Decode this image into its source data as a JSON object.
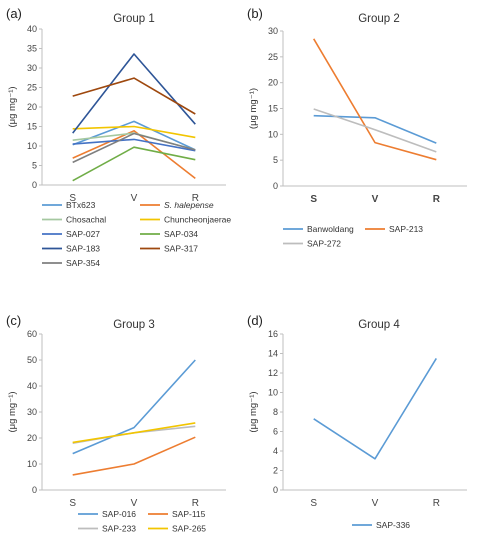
{
  "chart_data": [
    {
      "type": "line",
      "panel_label": "(a)",
      "title": "Group 1",
      "ylabel": "(μg mg⁻¹)",
      "categories": [
        "S",
        "V",
        "R"
      ],
      "ylim": [
        0,
        40
      ],
      "yticks": [
        0,
        5,
        10,
        15,
        20,
        25,
        30,
        35,
        40
      ],
      "series": [
        {
          "name": "BTx623",
          "color": "#5b9bd5",
          "values": [
            10.3,
            16.3,
            9.0
          ]
        },
        {
          "name": "S. halepense",
          "color": "#ed7d31",
          "italic": true,
          "values": [
            6.9,
            13.9,
            1.7
          ]
        },
        {
          "name": "Chosachal",
          "color": "#a5c8a0",
          "values": [
            11.5,
            13.3,
            9.0
          ]
        },
        {
          "name": "Chuncheonjaerae",
          "color": "#f2c500",
          "values": [
            14.4,
            15.0,
            12.2
          ]
        },
        {
          "name": "SAP-027",
          "color": "#4472c4",
          "values": [
            10.5,
            11.7,
            8.8
          ]
        },
        {
          "name": "SAP-034",
          "color": "#70ad47",
          "values": [
            1.1,
            9.7,
            6.5
          ]
        },
        {
          "name": "SAP-183",
          "color": "#2e5597",
          "values": [
            13.3,
            33.6,
            15.6
          ]
        },
        {
          "name": "SAP-317",
          "color": "#9e480e",
          "values": [
            22.8,
            27.4,
            18.2
          ]
        },
        {
          "name": "SAP-354",
          "color": "#7f7f7f",
          "values": [
            5.8,
            13.2,
            9.0
          ]
        }
      ]
    },
    {
      "type": "line",
      "panel_label": "(b)",
      "title": "Group 2",
      "ylabel": "(μg mg⁻¹)",
      "categories": [
        "S",
        "V",
        "R"
      ],
      "categories_bold": true,
      "ylim": [
        0,
        30
      ],
      "yticks": [
        0,
        5,
        10,
        15,
        20,
        25,
        30
      ],
      "series": [
        {
          "name": "Banwoldang",
          "color": "#5b9bd5",
          "values": [
            13.6,
            13.2,
            8.3
          ]
        },
        {
          "name": "SAP-213",
          "color": "#ed7d31",
          "values": [
            28.5,
            8.4,
            5.1
          ]
        },
        {
          "name": "SAP-272",
          "color": "#bdbdbd",
          "values": [
            14.9,
            10.9,
            6.6
          ]
        }
      ]
    },
    {
      "type": "line",
      "panel_label": "(c)",
      "title": "Group 3",
      "ylabel": "(μg mg⁻¹)",
      "categories": [
        "S",
        "V",
        "R"
      ],
      "ylim": [
        0,
        60
      ],
      "yticks": [
        0,
        10,
        20,
        30,
        40,
        50,
        60
      ],
      "series": [
        {
          "name": "SAP-016",
          "color": "#5b9bd5",
          "values": [
            14.0,
            24.0,
            50.0
          ]
        },
        {
          "name": "SAP-115",
          "color": "#ed7d31",
          "values": [
            5.8,
            10.0,
            20.3
          ]
        },
        {
          "name": "SAP-233",
          "color": "#bdbdbd",
          "values": [
            18.0,
            22.0,
            24.5
          ]
        },
        {
          "name": "SAP-265",
          "color": "#f2c500",
          "values": [
            18.3,
            22.0,
            25.8
          ]
        }
      ]
    },
    {
      "type": "line",
      "panel_label": "(d)",
      "title": "Group 4",
      "ylabel": "(μg mg⁻¹)",
      "categories": [
        "S",
        "V",
        "R"
      ],
      "ylim": [
        0,
        16
      ],
      "yticks": [
        0,
        2,
        4,
        6,
        8,
        10,
        12,
        14,
        16
      ],
      "series": [
        {
          "name": "SAP-336",
          "color": "#5b9bd5",
          "values": [
            7.3,
            3.2,
            13.5
          ]
        }
      ]
    }
  ]
}
